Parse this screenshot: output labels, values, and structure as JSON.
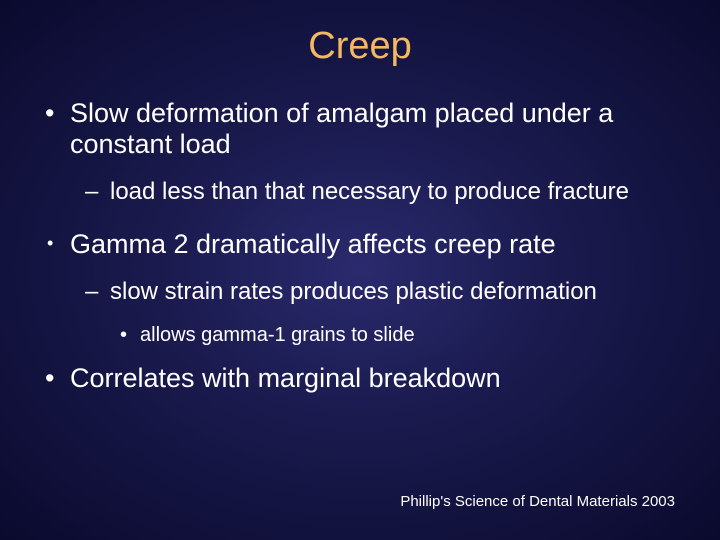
{
  "title": "Creep",
  "bullets": [
    {
      "level": 1,
      "variant": "",
      "text": "Slow deformation of amalgam placed under a constant load"
    },
    {
      "level": 2,
      "variant": "",
      "text": "load less than that necessary to produce fracture"
    },
    {
      "level": 1,
      "variant": "small-dot",
      "text": "Gamma 2 dramatically affects creep rate"
    },
    {
      "level": 2,
      "variant": "",
      "text": "slow strain rates produces plastic deformation"
    },
    {
      "level": 3,
      "variant": "",
      "text": "allows gamma-1 grains to slide"
    },
    {
      "level": 1,
      "variant": "",
      "text": "Correlates with marginal breakdown"
    }
  ],
  "footer": "Phillip's Science of Dental Materials 2003",
  "colors": {
    "title_color": "#f4b860",
    "text_color": "#ffffff",
    "bg_inner": "#2a2a6e",
    "bg_outer": "#0a0a2e"
  },
  "typography": {
    "title_fontsize": 38,
    "l1_fontsize": 27,
    "l2_fontsize": 24,
    "l3_fontsize": 20,
    "footer_fontsize": 15,
    "font_family": "Arial"
  }
}
